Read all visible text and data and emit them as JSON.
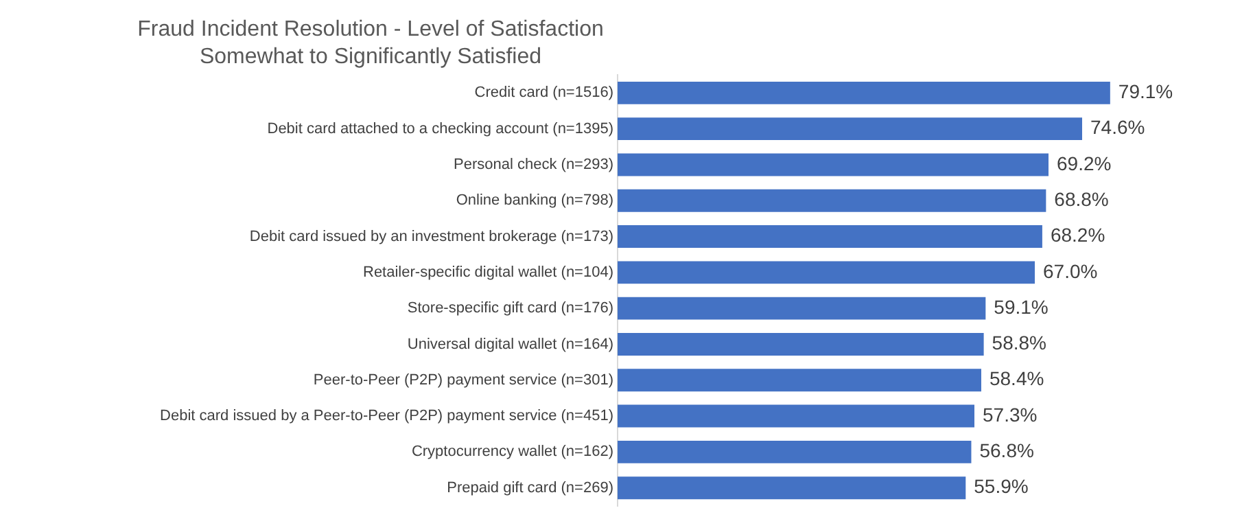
{
  "chart_data": {
    "type": "bar",
    "orientation": "horizontal",
    "title": "Fraud Incident Resolution - Level of Satisfaction",
    "subtitle": "Somewhat to Significantly Satisfied",
    "categories": [
      "Credit card (n=1516)",
      "Debit card attached to a checking account (n=1395)",
      "Personal check (n=293)",
      "Online banking (n=798)",
      "Debit card issued by an investment brokerage (n=173)",
      "Retailer-specific digital wallet (n=104)",
      "Store-specific gift card (n=176)",
      "Universal digital wallet (n=164)",
      "Peer-to-Peer (P2P) payment service (n=301)",
      "Debit card issued by a Peer-to-Peer (P2P) payment service (n=451)",
      "Cryptocurrency wallet (n=162)",
      "Prepaid gift card (n=269)"
    ],
    "values": [
      79.1,
      74.6,
      69.2,
      68.8,
      68.2,
      67.0,
      59.1,
      58.8,
      58.4,
      57.3,
      56.8,
      55.9
    ],
    "value_labels": [
      "79.1%",
      "74.6%",
      "69.2%",
      "68.8%",
      "68.2%",
      "67.0%",
      "59.1%",
      "58.8%",
      "58.4%",
      "57.3%",
      "56.8%",
      "55.9%"
    ],
    "color": "#4472c4",
    "grid": false,
    "legend": false,
    "tick_labels": "y"
  }
}
